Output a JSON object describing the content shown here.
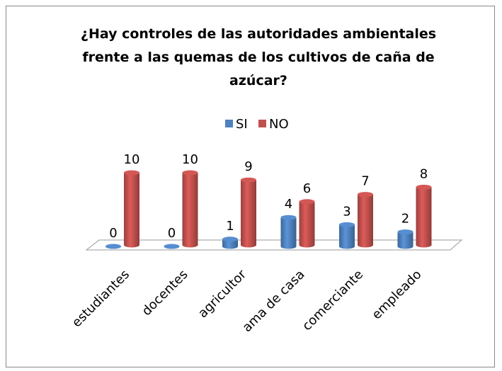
{
  "chart_data": {
    "type": "bar3d",
    "title": "¿Hay controles de las autoridades ambientales frente a las quemas de los cultivos de caña de azúcar?",
    "categories": [
      "estudiantes",
      "docentes",
      "agricultor",
      "ama de casa",
      "comerciante",
      "empleado"
    ],
    "series": [
      {
        "name": "SI",
        "color": "#4f81bd",
        "values": [
          0,
          0,
          1,
          4,
          3,
          2
        ]
      },
      {
        "name": "NO",
        "color": "#c0504d",
        "values": [
          10,
          10,
          9,
          6,
          7,
          8
        ]
      }
    ],
    "legend": "top"
  }
}
